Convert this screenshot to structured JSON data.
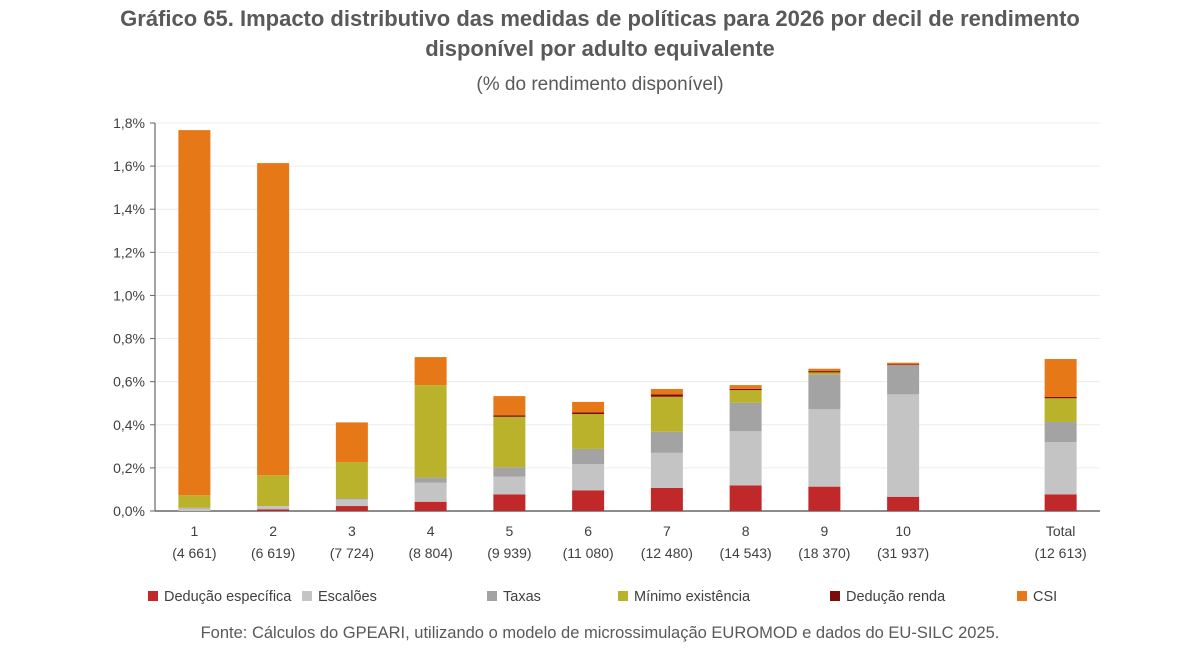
{
  "chart_data": {
    "type": "bar",
    "stacked": true,
    "title": "Gráfico 65. Impacto distributivo das medidas de políticas para 2026 por decil de rendimento disponível por adulto equivalente",
    "subtitle": "(% do rendimento disponível)",
    "categories": [
      [
        "1",
        "(4 661)"
      ],
      [
        "2",
        "(6 619)"
      ],
      [
        "3",
        "(7 724)"
      ],
      [
        "4",
        "(8 804)"
      ],
      [
        "5",
        "(9 939)"
      ],
      [
        "6",
        "(11 080)"
      ],
      [
        "7",
        "(12 480)"
      ],
      [
        "8",
        "(14 543)"
      ],
      [
        "9",
        "(18 370)"
      ],
      [
        "10",
        "(31 937)"
      ],
      [
        "Total",
        "(12 613)"
      ]
    ],
    "ylim": [
      0,
      1.8
    ],
    "yticks": [
      "0,0%",
      "0,2%",
      "0,4%",
      "0,6%",
      "0,8%",
      "1,0%",
      "1,2%",
      "1,4%",
      "1,6%",
      "1,8%"
    ],
    "grid": true,
    "legend_position": "bottom",
    "series": [
      {
        "name": "Dedução específica",
        "color": "#c0282a",
        "values": [
          0.0,
          0.008,
          0.023,
          0.043,
          0.077,
          0.096,
          0.107,
          0.119,
          0.113,
          0.066,
          0.077
        ]
      },
      {
        "name": "Escalões",
        "color": "#c4c4c4",
        "values": [
          0.012,
          0.015,
          0.031,
          0.088,
          0.082,
          0.122,
          0.163,
          0.251,
          0.359,
          0.475,
          0.243
        ]
      },
      {
        "name": "Taxas",
        "color": "#a3a3a3",
        "values": [
          0.003,
          0.0,
          0.004,
          0.025,
          0.044,
          0.07,
          0.098,
          0.132,
          0.162,
          0.136,
          0.093
        ]
      },
      {
        "name": "Mínimo existência",
        "color": "#bab22a",
        "values": [
          0.058,
          0.143,
          0.169,
          0.428,
          0.234,
          0.162,
          0.162,
          0.059,
          0.009,
          0.0,
          0.11
        ]
      },
      {
        "name": "Dedução renda",
        "color": "#7b0c0c",
        "values": [
          0.0,
          0.0,
          0.0,
          0.0,
          0.007,
          0.008,
          0.011,
          0.006,
          0.006,
          0.003,
          0.006
        ]
      },
      {
        "name": "CSI",
        "color": "#e67818",
        "values": [
          1.694,
          1.448,
          0.184,
          0.13,
          0.089,
          0.048,
          0.025,
          0.017,
          0.011,
          0.008,
          0.176
        ]
      }
    ]
  },
  "source": "Fonte: Cálculos do GPEARI, utilizando o modelo de microssimulação EUROMOD e dados do EU-SILC 2025."
}
